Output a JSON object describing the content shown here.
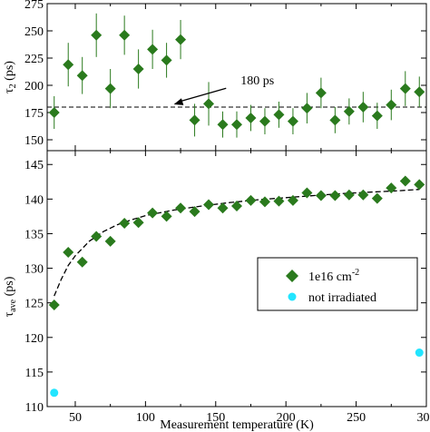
{
  "chart_data": [
    {
      "type": "scatter",
      "panel": "top",
      "ylabel_main": "τ",
      "ylabel_sub": "2",
      "ylabel_unit": "(ps)",
      "ylim": [
        140,
        275
      ],
      "yticks": [
        150,
        175,
        200,
        225,
        250,
        275
      ],
      "xlim": [
        30,
        300
      ],
      "reference_line": {
        "y": 180,
        "style": "dashed"
      },
      "annotation": {
        "text": "180 ps",
        "target_x": 115,
        "target_y": 180,
        "text_x": 160,
        "text_y": 199
      },
      "series": [
        {
          "color": "#2a7a1d",
          "marker": "diamond",
          "x": [
            35,
            45,
            55,
            65,
            75,
            85,
            95,
            105,
            115,
            125,
            135,
            145,
            155,
            165,
            175,
            185,
            195,
            205,
            215,
            225,
            235,
            245,
            255,
            265,
            275,
            285,
            295
          ],
          "y": [
            175,
            219,
            209,
            246,
            197,
            246,
            215,
            233,
            223,
            242,
            168,
            183,
            164,
            164,
            170,
            167,
            173,
            167,
            179,
            193,
            168,
            176,
            180,
            172,
            182,
            197,
            194
          ],
          "err": [
            15,
            20,
            17,
            20,
            18,
            18,
            18,
            18,
            16,
            18,
            15,
            20,
            12,
            12,
            12,
            12,
            12,
            12,
            14,
            14,
            12,
            12,
            14,
            12,
            14,
            16,
            14
          ]
        }
      ]
    },
    {
      "type": "scatter",
      "panel": "bottom",
      "xlabel": "Measurement temperature (K)",
      "ylabel_main": "τ",
      "ylabel_sub": "ave",
      "ylabel_unit": "(ps)",
      "xlim": [
        30,
        300
      ],
      "ylim": [
        110,
        147
      ],
      "xticks": [
        50,
        100,
        150,
        200,
        250,
        300
      ],
      "yticks": [
        110,
        115,
        120,
        125,
        130,
        135,
        140,
        145
      ],
      "legend": {
        "position": "right",
        "entries": [
          {
            "label_main": "1e16 cm",
            "label_sup": "-2",
            "marker": "diamond",
            "color": "#2a7a1d"
          },
          {
            "label_main": "not irradiated",
            "marker": "circle",
            "color": "#22e5ff"
          }
        ]
      },
      "series": [
        {
          "color": "#2a7a1d",
          "marker": "diamond",
          "x": [
            35,
            45,
            55,
            65,
            75,
            85,
            95,
            105,
            115,
            125,
            135,
            145,
            155,
            165,
            175,
            185,
            195,
            205,
            215,
            225,
            235,
            245,
            255,
            265,
            275,
            285,
            295
          ],
          "y": [
            124.7,
            132.3,
            130.9,
            134.6,
            133.9,
            136.5,
            136.6,
            138.0,
            137.5,
            138.7,
            138.2,
            139.2,
            138.7,
            139.0,
            139.8,
            139.6,
            139.7,
            139.8,
            140.9,
            140.5,
            140.5,
            140.6,
            140.6,
            140.1,
            141.6,
            142.6,
            142.1
          ]
        },
        {
          "color": "#22e5ff",
          "marker": "circle",
          "x": [
            35,
            295
          ],
          "y": [
            112.0,
            117.8
          ]
        }
      ],
      "fit_line": {
        "style": "dashed",
        "x": [
          35,
          40,
          45,
          50,
          60,
          70,
          80,
          90,
          100,
          120,
          140,
          160,
          180,
          200,
          220,
          240,
          260,
          280,
          295
        ],
        "y": [
          126.0,
          128.4,
          130.4,
          131.8,
          133.9,
          135.3,
          136.3,
          137.0,
          137.6,
          138.4,
          139.0,
          139.5,
          139.9,
          140.2,
          140.5,
          140.8,
          141.0,
          141.2,
          141.4
        ]
      }
    }
  ]
}
